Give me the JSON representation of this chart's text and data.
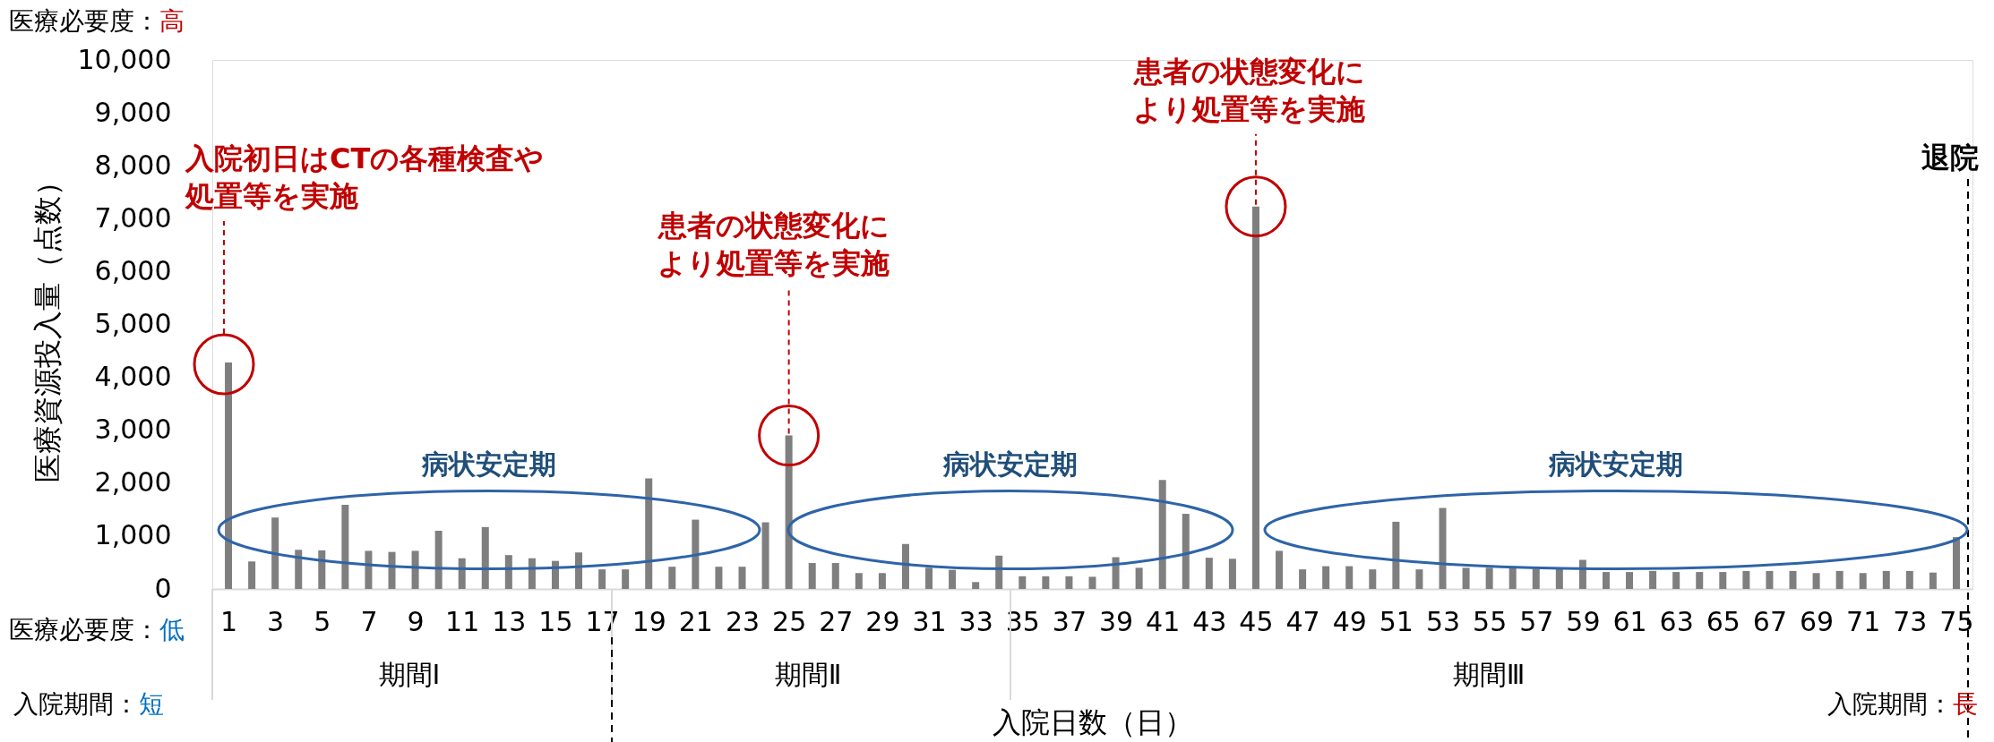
{
  "chart_data": {
    "type": "bar",
    "xlabel": "入院日数（日）",
    "ylabel": "医療資源投入量（点数）",
    "color": "#7f7f7f",
    "x": [
      1,
      2,
      3,
      4,
      5,
      6,
      7,
      8,
      9,
      10,
      11,
      12,
      13,
      14,
      15,
      16,
      17,
      18,
      19,
      20,
      21,
      22,
      23,
      24,
      25,
      26,
      27,
      28,
      29,
      30,
      31,
      32,
      33,
      34,
      35,
      36,
      37,
      38,
      39,
      40,
      41,
      42,
      43,
      44,
      45,
      46,
      47,
      48,
      49,
      50,
      51,
      52,
      53,
      54,
      55,
      56,
      57,
      58,
      59,
      60,
      61,
      62,
      63,
      64,
      65,
      66,
      67,
      68,
      69,
      70,
      71,
      72,
      73,
      74,
      75
    ],
    "values": [
      4280,
      520,
      1350,
      740,
      730,
      1590,
      720,
      700,
      720,
      1100,
      580,
      1170,
      640,
      580,
      530,
      690,
      370,
      370,
      2090,
      420,
      1310,
      420,
      420,
      1260,
      2900,
      490,
      490,
      300,
      300,
      850,
      400,
      360,
      130,
      630,
      240,
      240,
      240,
      230,
      600,
      400,
      2060,
      1420,
      590,
      570,
      7230,
      720,
      370,
      430,
      430,
      370,
      1270,
      370,
      1530,
      400,
      400,
      390,
      380,
      380,
      550,
      320,
      320,
      340,
      320,
      320,
      320,
      340,
      340,
      340,
      300,
      340,
      300,
      340,
      340,
      310,
      980
    ],
    "xlim": [
      0.5,
      75.5
    ],
    "xticks": [
      1,
      3,
      5,
      7,
      9,
      11,
      13,
      15,
      17,
      19,
      21,
      23,
      25,
      27,
      29,
      31,
      33,
      35,
      37,
      39,
      41,
      43,
      45,
      47,
      49,
      51,
      53,
      55,
      57,
      59,
      61,
      63,
      65,
      67,
      69,
      71,
      73,
      75
    ],
    "ylim": [
      0,
      10000
    ],
    "yticks": [
      0,
      {
        "value": 1000,
        "label": "1,000"
      },
      {
        "value": 2000,
        "label": "2,000"
      },
      {
        "value": 3000,
        "label": "3,000"
      },
      {
        "value": 4000,
        "label": "4,000"
      },
      {
        "value": 5000,
        "label": "5,000"
      },
      {
        "value": 6000,
        "label": "6,000"
      },
      {
        "value": 7000,
        "label": "7,000"
      },
      {
        "value": 8000,
        "label": "8,000"
      },
      {
        "value": 9000,
        "label": "9,000"
      },
      {
        "value": 10000,
        "label": "10,000"
      }
    ],
    "ref_lines": [
      {
        "axis": "x",
        "value": 75.5,
        "color": "#000000",
        "line_style": "dashed",
        "label": "退院"
      }
    ],
    "annotations": [
      "入院初日はCTの各種検査や処置等を実施",
      {
        "text": "患者の状態変化により処置等を実施",
        "x": 25,
        "y": 2900
      },
      {
        "text": "患者の状態変化により処置等を実施",
        "x": 45,
        "y": 7230
      },
      "病状安定期",
      "病状安定期",
      "病状安定期",
      "期間Ⅰ",
      "期間Ⅱ",
      "期間Ⅲ",
      "医療必要度：高",
      "医療必要度：低",
      "入院期間：短",
      "入院期間：長"
    ]
  }
}
